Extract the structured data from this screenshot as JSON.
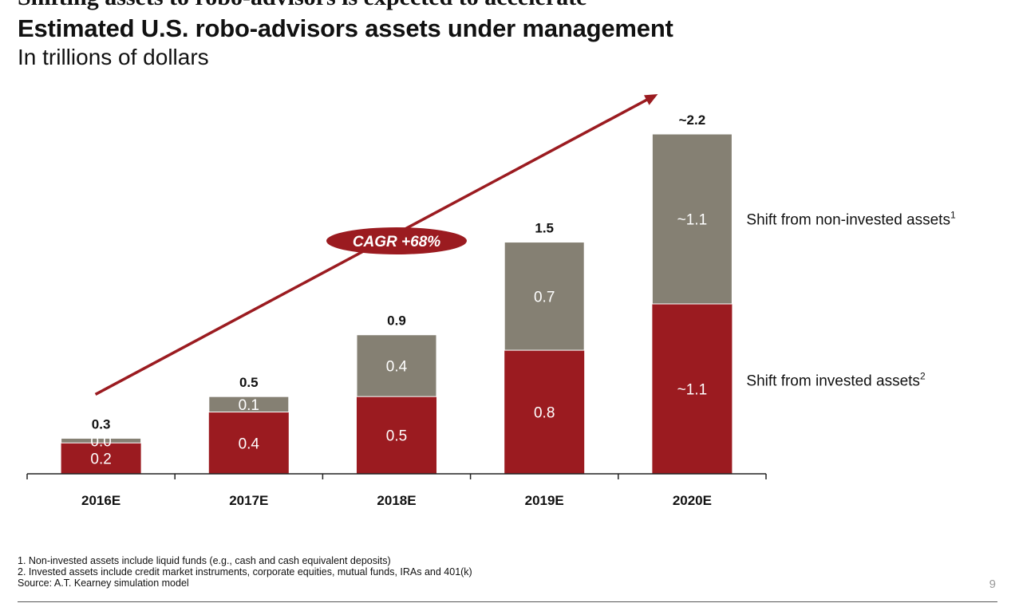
{
  "slide": {
    "heading_clipped": "Shifting assets to robo-advisors is expected to accelerate",
    "page_number": "9"
  },
  "colors": {
    "invested": "#9b1b20",
    "non_invested": "#858073",
    "arrow": "#9b1b20",
    "axis": "#222222"
  },
  "chart_data": {
    "type": "bar",
    "stacked": true,
    "title": "Estimated U.S. robo-advisors assets under management",
    "subtitle": "In trillions of dollars",
    "categories": [
      "2016E",
      "2017E",
      "2018E",
      "2019E",
      "2020E"
    ],
    "totals": [
      "0.3",
      "0.5",
      "0.9",
      "1.5",
      "~2.2"
    ],
    "ylim": [
      0,
      2.2
    ],
    "series": [
      {
        "name": "Shift from invested assets",
        "footnote_marker": "2",
        "values": [
          0.2,
          0.4,
          0.5,
          0.8,
          1.1
        ],
        "labels": [
          "0.2",
          "0.4",
          "0.5",
          "0.8",
          "~1.1"
        ]
      },
      {
        "name": "Shift from non-invested assets",
        "footnote_marker": "1",
        "values": [
          0.03,
          0.1,
          0.4,
          0.7,
          1.1
        ],
        "labels": [
          "0.0",
          "0.1",
          "0.4",
          "0.7",
          "~1.1"
        ]
      }
    ],
    "annotation": "CAGR +68%"
  },
  "footnotes": [
    "1. Non-invested assets include liquid funds (e.g., cash and cash equivalent deposits)",
    "2. Invested assets include credit market instruments, corporate equities, mutual funds, IRAs and 401(k)",
    "Source: A.T. Kearney simulation model"
  ]
}
